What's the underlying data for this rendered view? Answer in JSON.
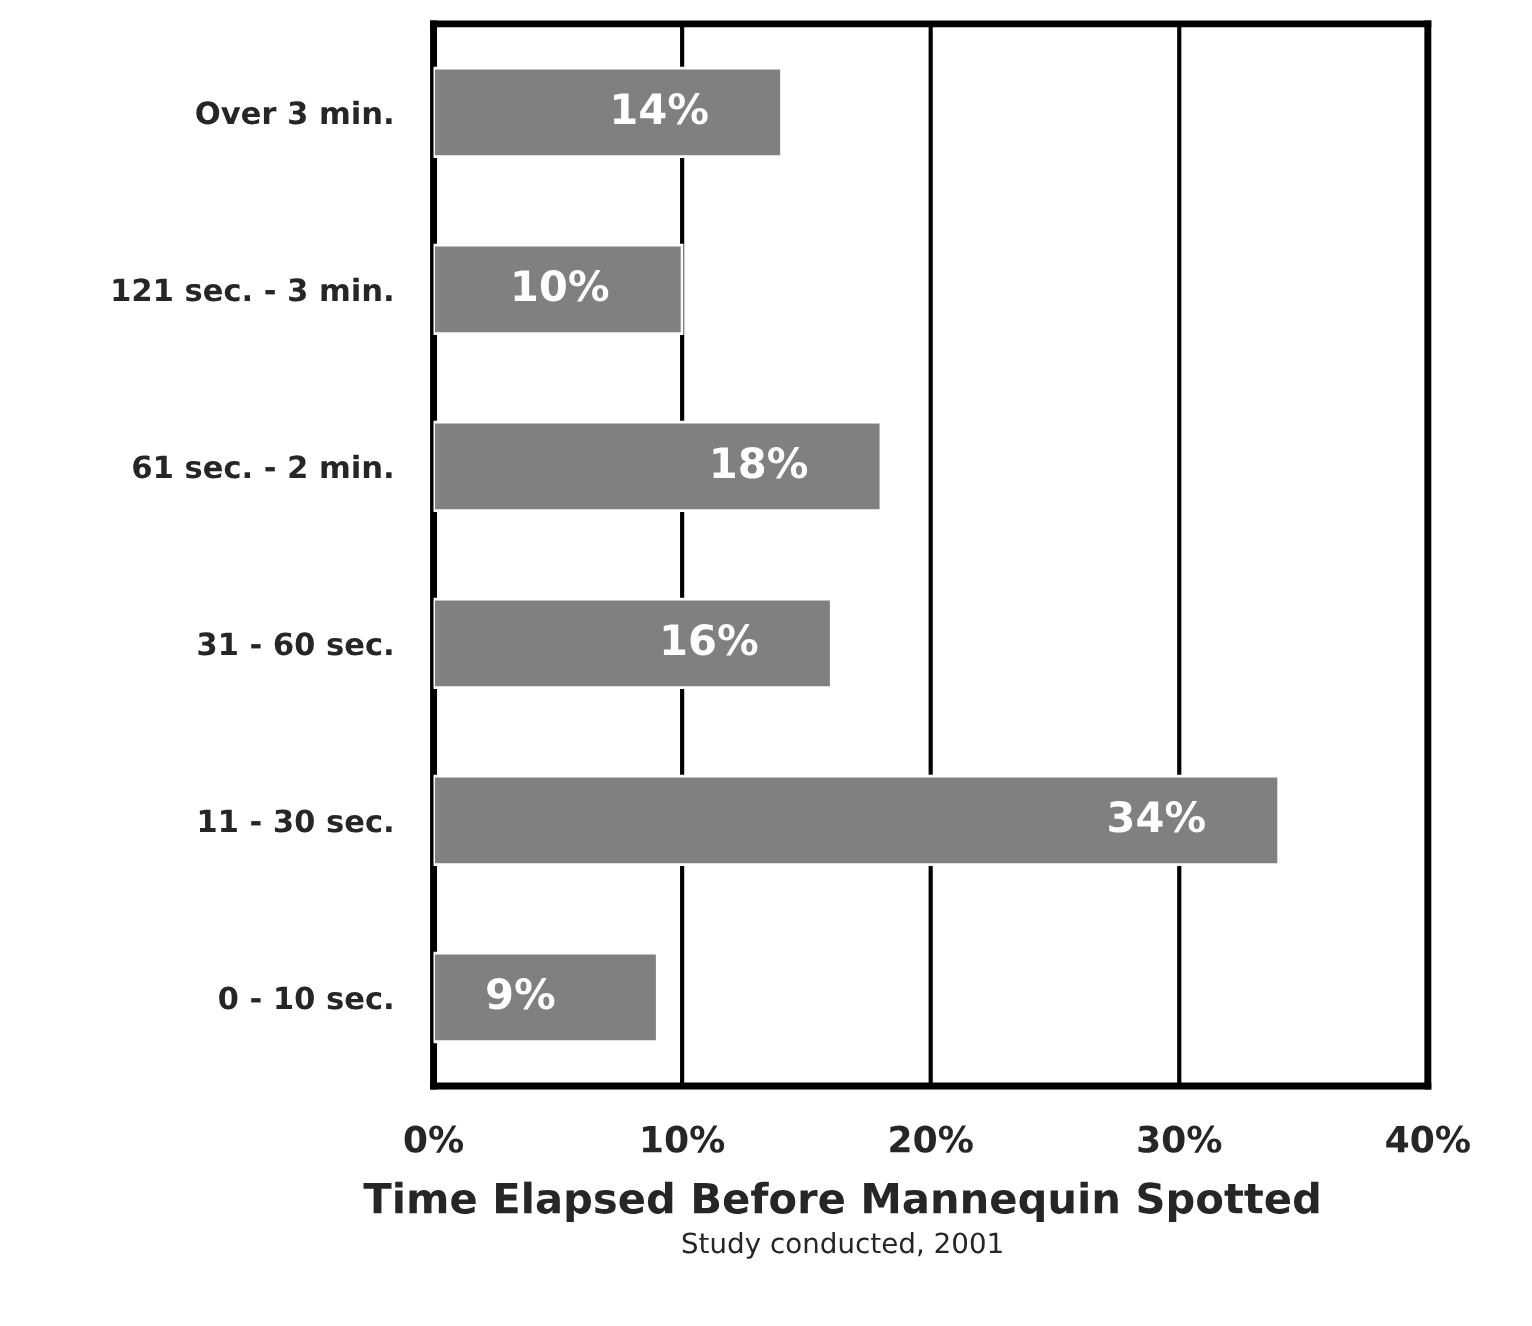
{
  "chart_data": {
    "type": "bar",
    "orientation": "horizontal",
    "title": "Time Elapsed Before Mannequin Spotted",
    "annotations": [
      "Study conducted, 2001"
    ],
    "categories": [
      "Over 3 min.",
      "121 sec. - 3 min.",
      "61 sec. - 2 min.",
      "31 - 60 sec.",
      "11 - 30 sec.",
      "0 - 10 sec."
    ],
    "values": [
      14,
      10,
      18,
      16,
      34,
      9
    ],
    "value_labels": [
      "14%",
      "10%",
      "18%",
      "16%",
      "34%",
      "9%"
    ],
    "color": "#808080",
    "xlim": [
      0,
      40
    ],
    "xticks": [
      {
        "value": 0,
        "label": "0%"
      },
      {
        "value": 10,
        "label": "10%"
      },
      {
        "value": 20,
        "label": "20%"
      },
      {
        "value": 30,
        "label": "30%"
      },
      {
        "value": 40,
        "label": "40%"
      }
    ],
    "grid": "x",
    "legend": false
  }
}
